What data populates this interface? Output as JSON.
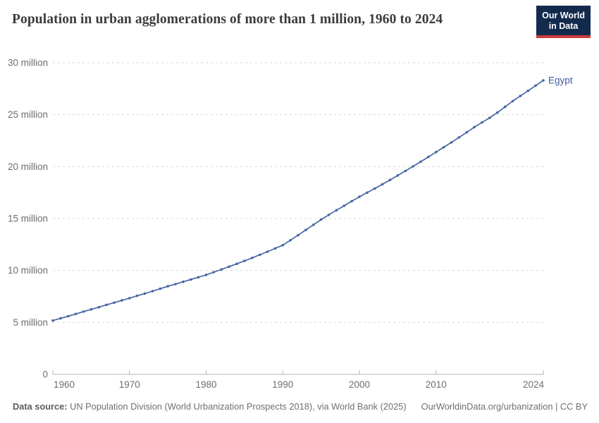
{
  "header": {
    "title": "Population in urban agglomerations of more than 1 million, 1960 to 2024",
    "logo": {
      "line1": "Our World",
      "line2": "in Data"
    }
  },
  "colors": {
    "series_line": "#4766a5",
    "series_label": "#3f5e9e",
    "gridline": "#d6d6d6",
    "axis": "#b3b3b3",
    "tick_label": "#6e6e6e",
    "logo_bg": "#132a4d",
    "logo_red": "#cc3b3f"
  },
  "chart_data": {
    "type": "line",
    "title": "Population in urban agglomerations of more than 1 million, 1960 to 2024",
    "xlabel": "",
    "ylabel": "",
    "unit": "million people",
    "xlim": [
      1960,
      2024
    ],
    "ylim_millions": [
      0,
      30
    ],
    "x_ticks": [
      1960,
      1970,
      1980,
      1990,
      2000,
      2010,
      2024
    ],
    "y_ticks": [
      {
        "value": 0,
        "label": "0"
      },
      {
        "value": 5,
        "label": "5 million"
      },
      {
        "value": 10,
        "label": "10 million"
      },
      {
        "value": 15,
        "label": "15 million"
      },
      {
        "value": 20,
        "label": "20 million"
      },
      {
        "value": 25,
        "label": "25 million"
      },
      {
        "value": 30,
        "label": "30 million"
      }
    ],
    "grid": "horizontal-dashed",
    "legend": "end-of-line-label",
    "series": [
      {
        "name": "Egypt",
        "color": "#4766a5",
        "x": [
          1960,
          1961,
          1962,
          1963,
          1964,
          1965,
          1966,
          1967,
          1968,
          1969,
          1970,
          1971,
          1972,
          1973,
          1974,
          1975,
          1976,
          1977,
          1978,
          1979,
          1980,
          1981,
          1982,
          1983,
          1984,
          1985,
          1986,
          1987,
          1988,
          1989,
          1990,
          1991,
          1992,
          1993,
          1994,
          1995,
          1996,
          1997,
          1998,
          1999,
          2000,
          2001,
          2002,
          2003,
          2004,
          2005,
          2006,
          2007,
          2008,
          2009,
          2010,
          2011,
          2012,
          2013,
          2014,
          2015,
          2016,
          2017,
          2018,
          2019,
          2020,
          2021,
          2022,
          2023,
          2024
        ],
        "values_millions": [
          5.18,
          5.39,
          5.6,
          5.82,
          6.04,
          6.26,
          6.47,
          6.69,
          6.9,
          7.12,
          7.34,
          7.56,
          7.78,
          8.01,
          8.24,
          8.48,
          8.69,
          8.91,
          9.13,
          9.35,
          9.58,
          9.84,
          10.1,
          10.37,
          10.64,
          10.92,
          11.21,
          11.51,
          11.81,
          12.12,
          12.44,
          12.91,
          13.4,
          13.9,
          14.4,
          14.9,
          15.35,
          15.8,
          16.23,
          16.66,
          17.1,
          17.49,
          17.89,
          18.3,
          18.72,
          19.15,
          19.58,
          20.02,
          20.47,
          20.93,
          21.4,
          21.86,
          22.33,
          22.81,
          23.3,
          23.8,
          24.25,
          24.7,
          25.2,
          25.75,
          26.3,
          26.8,
          27.3,
          27.8,
          28.3
        ]
      }
    ]
  },
  "footer": {
    "source_label": "Data source:",
    "source_text": "UN Population Division (World Urbanization Prospects 2018), via World Bank (2025)",
    "credit": "OurWorldinData.org/urbanization | CC BY"
  }
}
